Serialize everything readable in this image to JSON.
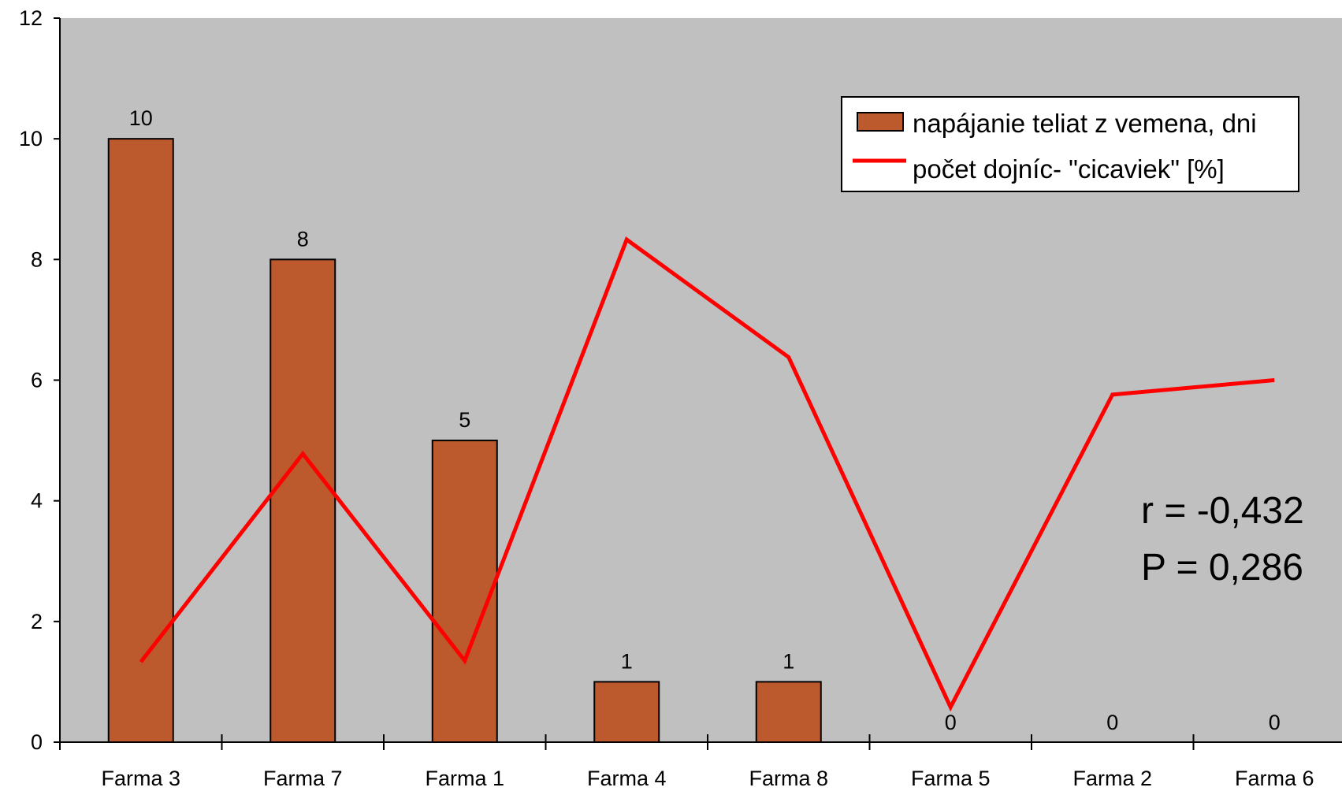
{
  "chart_data": {
    "type": "bar",
    "categories": [
      "Farma 3",
      "Farma 7",
      "Farma 1",
      "Farma 4",
      "Farma 8",
      "Farma 5",
      "Farma 2",
      "Farma 6"
    ],
    "ylim": [
      0,
      12
    ],
    "yticks": [
      "0",
      "2",
      "4",
      "6",
      "8",
      "10",
      "12"
    ],
    "grid": false,
    "legend_position": "top-right",
    "series": [
      {
        "name": "napájanie teliat z vemena, dni",
        "kind": "bar",
        "color": "#BC5A2D",
        "values": [
          10,
          8,
          5,
          1,
          1,
          0,
          0,
          0
        ],
        "labels": [
          "10",
          "8",
          "5",
          "1",
          "1",
          "0",
          "0",
          "0"
        ]
      },
      {
        "name": "počet dojníc- \"cicaviek\" [%]",
        "kind": "line",
        "color": "#FF0000",
        "values": [
          1.33,
          4.78,
          1.35,
          8.33,
          6.38,
          0.58,
          5.76,
          6.0
        ]
      }
    ],
    "annotations": [
      "r = -0,432",
      "P = 0,286"
    ],
    "plot_background": "#C0C0C0"
  }
}
